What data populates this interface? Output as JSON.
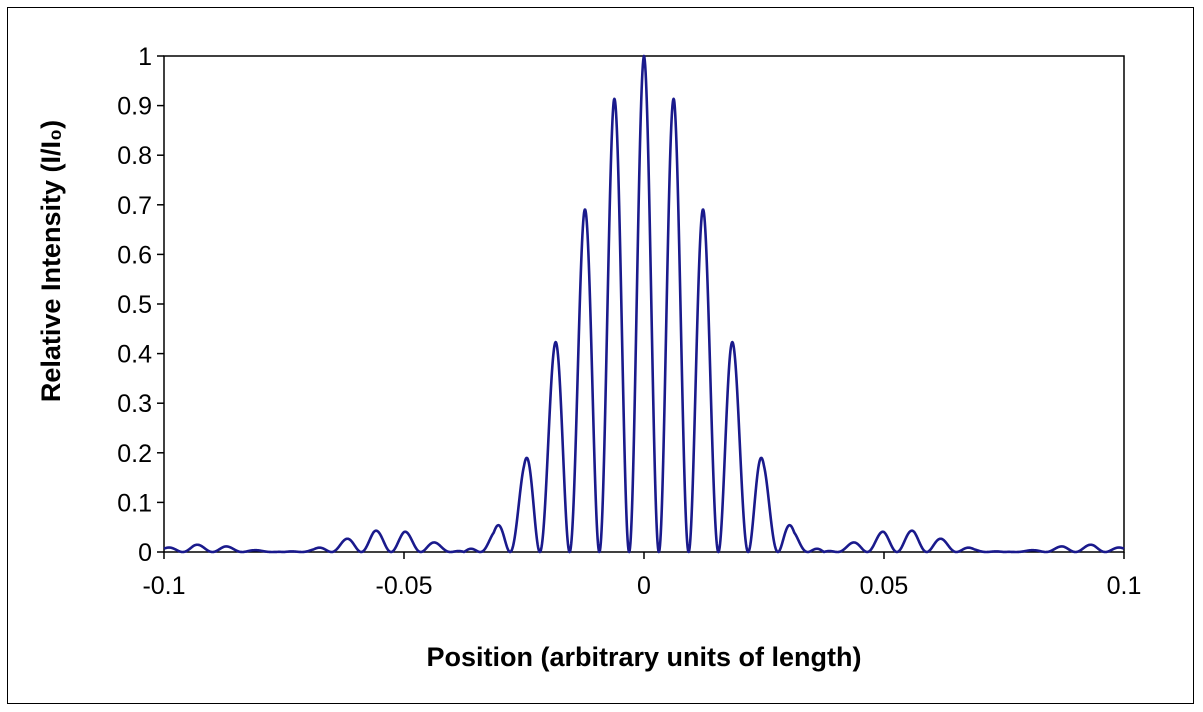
{
  "chart_data": {
    "type": "line",
    "title": "",
    "xlabel": "Position (arbitrary units of length)",
    "ylabel": "Relative Intensity (I/I₀)",
    "xlim": [
      -0.1,
      0.1
    ],
    "ylim": [
      0,
      1
    ],
    "x_ticks": [
      "-0.1",
      "-0.05",
      "0",
      "0.05",
      "0.1"
    ],
    "y_ticks": [
      "0",
      "0.1",
      "0.2",
      "0.3",
      "0.4",
      "0.5",
      "0.6",
      "0.7",
      "0.8",
      "0.9",
      "1"
    ],
    "grid": false,
    "legend": "none",
    "series": [
      {
        "color": "#1a1a8c",
        "x": [
          -0.1,
          -0.0938,
          -0.0875,
          -0.0813,
          -0.075,
          -0.0688,
          -0.0625,
          -0.0563,
          -0.05,
          -0.0438,
          -0.0375,
          -0.0313,
          -0.025,
          -0.0188,
          -0.0125,
          -0.0063,
          0,
          0.0063,
          0.0125,
          0.0188,
          0.025,
          0.0313,
          0.0375,
          0.0438,
          0.05,
          0.0563,
          0.0625,
          0.0688,
          0.075,
          0.0813,
          0.0875,
          0.0938,
          0.1
        ],
        "peaks": [
          0.008,
          0.015,
          0.012,
          0.004,
          0.0,
          0.006,
          0.025,
          0.043,
          0.042,
          0.02,
          0.0,
          0.04,
          0.175,
          0.41,
          0.685,
          0.912,
          1.0,
          0.912,
          0.685,
          0.41,
          0.175,
          0.04,
          0.0,
          0.02,
          0.042,
          0.043,
          0.025,
          0.006,
          0.0,
          0.004,
          0.012,
          0.015,
          0.008
        ]
      }
    ]
  }
}
